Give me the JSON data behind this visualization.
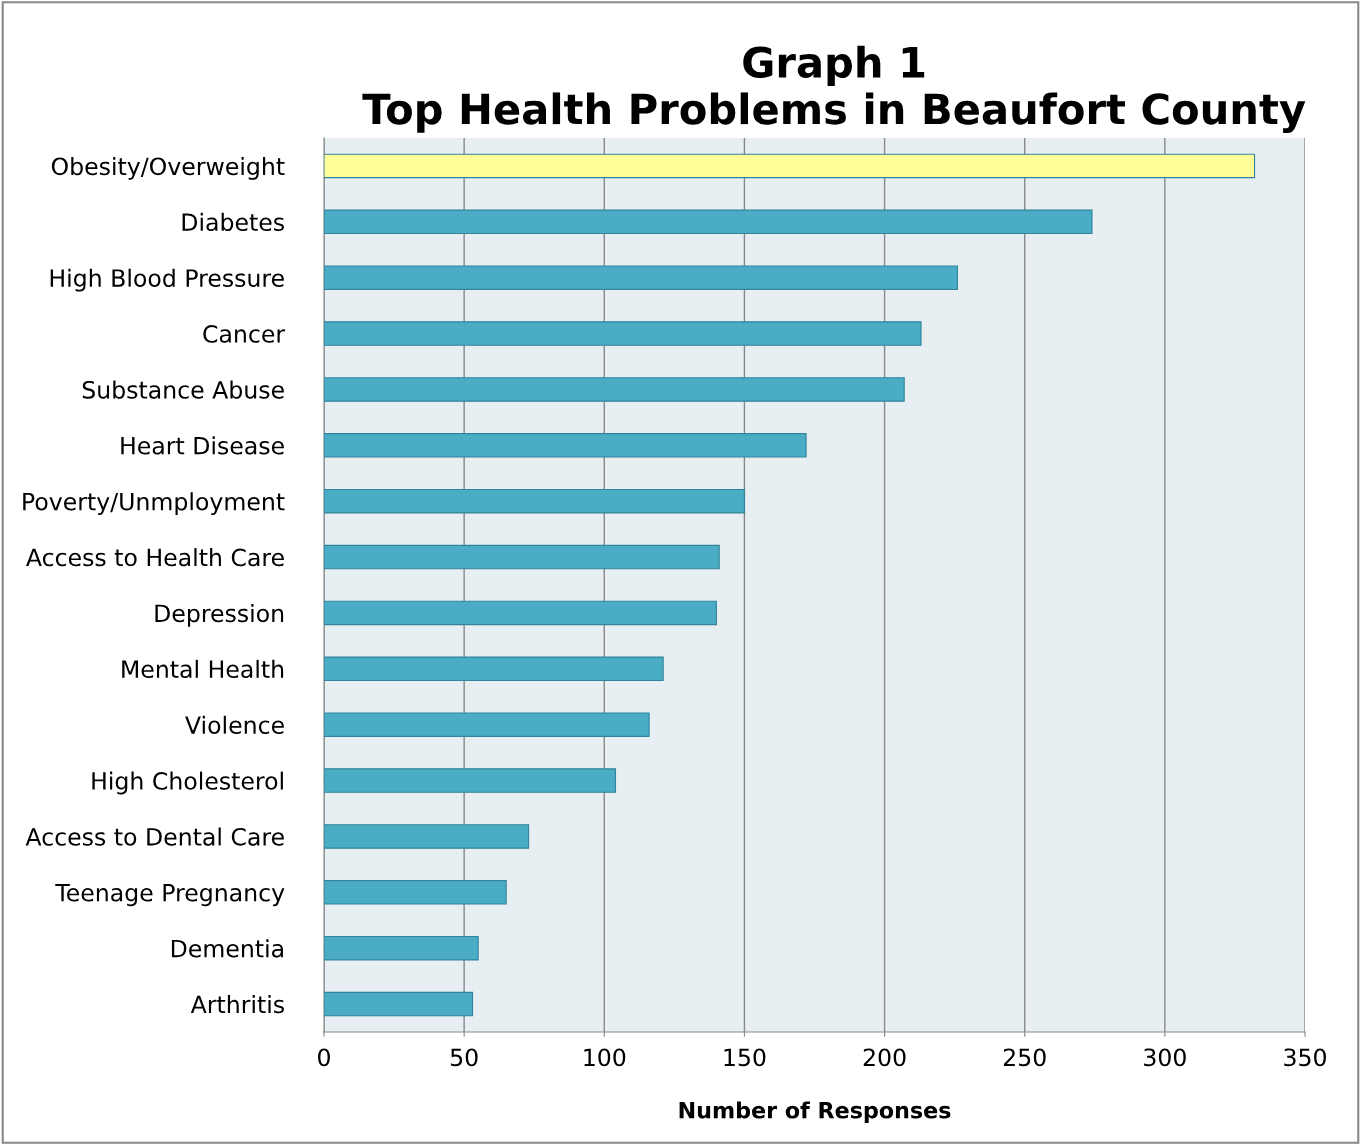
{
  "chart_data": {
    "type": "bar",
    "orientation": "horizontal",
    "title": "Graph 1\nTop Health Problems in Beaufort County",
    "xlabel": "Number of Responses",
    "categories": [
      "Obesity/Overweight",
      "Diabetes",
      "High Blood Pressure",
      "Cancer",
      "Substance Abuse",
      "Heart Disease",
      "Poverty/Unmployment",
      "Access to Health Care",
      "Depression",
      "Mental Health",
      "Violence",
      "High Cholesterol",
      "Access to Dental Care",
      "Teenage Pregnancy",
      "Dementia",
      "Arthritis"
    ],
    "values": [
      332,
      274,
      226,
      213,
      207,
      172,
      150,
      141,
      140,
      121,
      116,
      104,
      73,
      65,
      55,
      53
    ],
    "colors": [
      "#ffff99",
      "#4bacc6",
      "#4bacc6",
      "#4bacc6",
      "#4bacc6",
      "#4bacc6",
      "#4bacc6",
      "#4bacc6",
      "#4bacc6",
      "#4bacc6",
      "#4bacc6",
      "#4bacc6",
      "#4bacc6",
      "#4bacc6",
      "#4bacc6",
      "#4bacc6"
    ],
    "xlim": [
      0,
      350
    ],
    "xticks": [
      0,
      50,
      100,
      150,
      200,
      250,
      300,
      350
    ],
    "grid": "x"
  }
}
